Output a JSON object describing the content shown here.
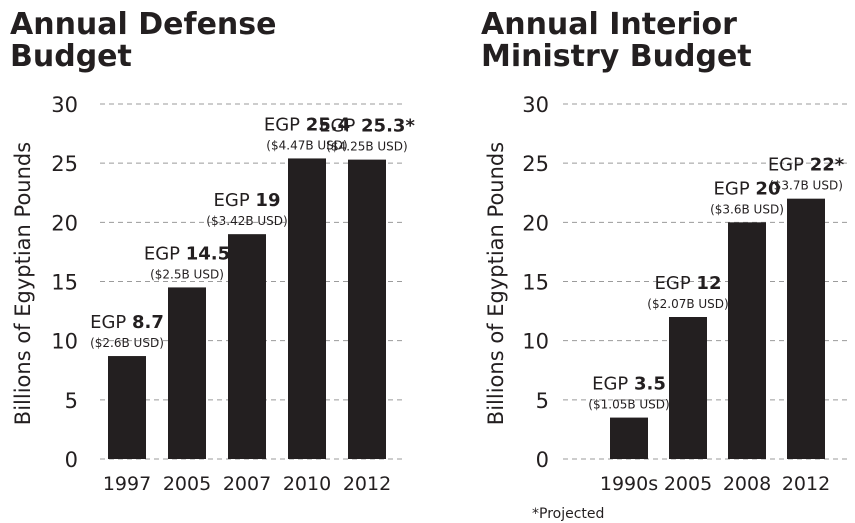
{
  "chart_data": [
    {
      "type": "bar",
      "title_lines": [
        "Annual Defense",
        "Budget"
      ],
      "ylabel": "Billions of Egyptian Pounds",
      "ylim": [
        0,
        30
      ],
      "yticks": [
        0,
        5,
        10,
        15,
        20,
        25,
        30
      ],
      "grid": true,
      "categories": [
        "1997",
        "2005",
        "2007",
        "2010",
        "2012"
      ],
      "values": [
        8.7,
        14.5,
        19,
        25.4,
        25.3
      ],
      "labels": [
        {
          "prefix": "EGP",
          "value": "8.7",
          "usd": "($2.6B USD)"
        },
        {
          "prefix": "EGP",
          "value": "14.5",
          "usd": "($2.5B USD)"
        },
        {
          "prefix": "EGP",
          "value": "19",
          "usd": "($3.42B USD)"
        },
        {
          "prefix": "EGP",
          "value": "25.4",
          "usd": "($4.47B USD)"
        },
        {
          "prefix": "EGP",
          "value": "25.3*",
          "usd": "($4.25B USD)"
        }
      ]
    },
    {
      "type": "bar",
      "title_lines": [
        "Annual Interior",
        "Ministry Budget"
      ],
      "ylabel": "Billions of Egyptian Pounds",
      "ylim": [
        0,
        30
      ],
      "yticks": [
        0,
        5,
        10,
        15,
        20,
        25,
        30
      ],
      "grid": true,
      "categories": [
        "1990s",
        "2005",
        "2008",
        "2012"
      ],
      "values": [
        3.5,
        12,
        20,
        22
      ],
      "labels": [
        {
          "prefix": "EGP",
          "value": "3.5",
          "usd": "($1.05B USD)"
        },
        {
          "prefix": "EGP",
          "value": "12",
          "usd": "($2.07B USD)"
        },
        {
          "prefix": "EGP",
          "value": "20",
          "usd": "($3.6B USD)"
        },
        {
          "prefix": "EGP",
          "value": "22*",
          "usd": "($3.7B USD)"
        }
      ]
    }
  ],
  "footnote": "*Projected"
}
